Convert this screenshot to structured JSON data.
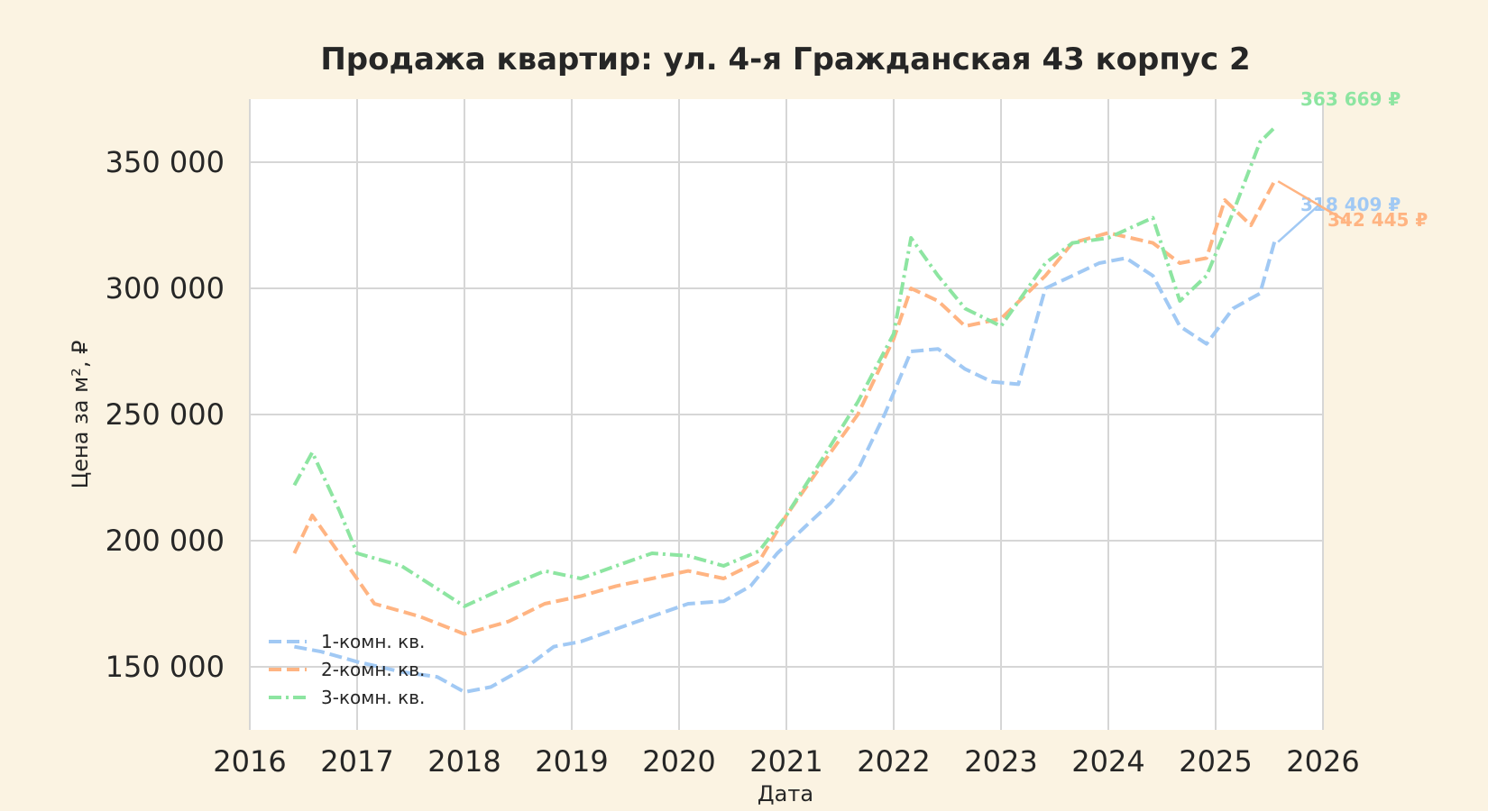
{
  "colors": {
    "background": "#fbf3e2",
    "plot_background": "#ffffff",
    "grid": "#d6d6d6",
    "series_1": "#a1c9f4",
    "series_2": "#ffb482",
    "series_3": "#8de5a1"
  },
  "chart_data": {
    "type": "line",
    "title": "Продажа квартир: ул. 4-я Гражданская 43 корпус 2",
    "xlabel": "Дата",
    "ylabel": "Цена за м², ₽",
    "xlim": [
      "2016-01-01",
      "2026-01-01"
    ],
    "ylim": [
      125000,
      375000
    ],
    "xticks": [
      "2016",
      "2017",
      "2018",
      "2019",
      "2020",
      "2021",
      "2022",
      "2023",
      "2024",
      "2025",
      "2026"
    ],
    "yticks": [
      150000,
      200000,
      250000,
      300000,
      350000
    ],
    "ytick_labels": [
      "150 000",
      "200 000",
      "250 000",
      "300 000",
      "350 000"
    ],
    "grid": true,
    "legend_position": "lower-left",
    "series": [
      {
        "name": "1-комн. кв.",
        "style": "dashed",
        "end_label": "318 409 ₽",
        "points": [
          [
            "2016-06-01",
            158000
          ],
          [
            "2016-09-01",
            156000
          ],
          [
            "2017-01-01",
            152000
          ],
          [
            "2017-06-01",
            148000
          ],
          [
            "2017-10-01",
            146000
          ],
          [
            "2018-01-01",
            140000
          ],
          [
            "2018-04-01",
            142000
          ],
          [
            "2018-08-01",
            150000
          ],
          [
            "2018-11-01",
            158000
          ],
          [
            "2019-02-01",
            160000
          ],
          [
            "2019-06-01",
            165000
          ],
          [
            "2019-10-01",
            170000
          ],
          [
            "2020-02-01",
            175000
          ],
          [
            "2020-06-01",
            176000
          ],
          [
            "2020-09-01",
            182000
          ],
          [
            "2020-12-01",
            195000
          ],
          [
            "2021-03-01",
            205000
          ],
          [
            "2021-06-01",
            215000
          ],
          [
            "2021-09-01",
            228000
          ],
          [
            "2021-12-01",
            250000
          ],
          [
            "2022-03-01",
            275000
          ],
          [
            "2022-06-01",
            276000
          ],
          [
            "2022-09-01",
            268000
          ],
          [
            "2022-12-01",
            263000
          ],
          [
            "2023-03-01",
            262000
          ],
          [
            "2023-06-01",
            300000
          ],
          [
            "2023-09-01",
            305000
          ],
          [
            "2023-12-01",
            310000
          ],
          [
            "2024-03-01",
            312000
          ],
          [
            "2024-06-01",
            305000
          ],
          [
            "2024-09-01",
            285000
          ],
          [
            "2024-12-01",
            278000
          ],
          [
            "2025-03-01",
            292000
          ],
          [
            "2025-06-01",
            298000
          ],
          [
            "2025-07-20",
            318409
          ]
        ]
      },
      {
        "name": "2-комн. кв.",
        "style": "dashed",
        "end_label": "342 445 ₽",
        "points": [
          [
            "2016-06-01",
            195000
          ],
          [
            "2016-08-01",
            210000
          ],
          [
            "2016-12-01",
            190000
          ],
          [
            "2017-03-01",
            175000
          ],
          [
            "2017-08-01",
            170000
          ],
          [
            "2018-01-01",
            163000
          ],
          [
            "2018-06-01",
            168000
          ],
          [
            "2018-10-01",
            175000
          ],
          [
            "2019-02-01",
            178000
          ],
          [
            "2019-06-01",
            182000
          ],
          [
            "2019-10-01",
            185000
          ],
          [
            "2020-02-01",
            188000
          ],
          [
            "2020-06-01",
            185000
          ],
          [
            "2020-10-01",
            192000
          ],
          [
            "2021-01-01",
            210000
          ],
          [
            "2021-05-01",
            230000
          ],
          [
            "2021-09-01",
            250000
          ],
          [
            "2022-01-01",
            280000
          ],
          [
            "2022-03-01",
            300000
          ],
          [
            "2022-06-01",
            295000
          ],
          [
            "2022-09-01",
            285000
          ],
          [
            "2023-01-01",
            288000
          ],
          [
            "2023-06-01",
            305000
          ],
          [
            "2023-09-01",
            318000
          ],
          [
            "2024-01-01",
            322000
          ],
          [
            "2024-06-01",
            318000
          ],
          [
            "2024-09-01",
            310000
          ],
          [
            "2024-12-01",
            312000
          ],
          [
            "2025-02-01",
            335000
          ],
          [
            "2025-05-01",
            325000
          ],
          [
            "2025-07-20",
            342445
          ]
        ]
      },
      {
        "name": "3-комн. кв.",
        "style": "dashdot",
        "end_label": "363 669 ₽",
        "points": [
          [
            "2016-06-01",
            222000
          ],
          [
            "2016-08-01",
            235000
          ],
          [
            "2016-11-01",
            212000
          ],
          [
            "2017-01-01",
            195000
          ],
          [
            "2017-06-01",
            190000
          ],
          [
            "2018-01-01",
            174000
          ],
          [
            "2018-06-01",
            182000
          ],
          [
            "2018-10-01",
            188000
          ],
          [
            "2019-02-01",
            185000
          ],
          [
            "2019-06-01",
            190000
          ],
          [
            "2019-10-01",
            195000
          ],
          [
            "2020-02-01",
            194000
          ],
          [
            "2020-06-01",
            190000
          ],
          [
            "2020-10-01",
            196000
          ],
          [
            "2021-01-01",
            210000
          ],
          [
            "2021-05-01",
            232000
          ],
          [
            "2021-09-01",
            255000
          ],
          [
            "2022-01-01",
            282000
          ],
          [
            "2022-03-01",
            320000
          ],
          [
            "2022-06-01",
            305000
          ],
          [
            "2022-09-01",
            292000
          ],
          [
            "2023-01-01",
            285000
          ],
          [
            "2023-06-01",
            310000
          ],
          [
            "2023-09-01",
            318000
          ],
          [
            "2024-01-01",
            320000
          ],
          [
            "2024-06-01",
            328000
          ],
          [
            "2024-09-01",
            295000
          ],
          [
            "2024-12-01",
            305000
          ],
          [
            "2025-03-01",
            330000
          ],
          [
            "2025-06-01",
            358000
          ],
          [
            "2025-07-20",
            363669
          ]
        ]
      }
    ]
  }
}
